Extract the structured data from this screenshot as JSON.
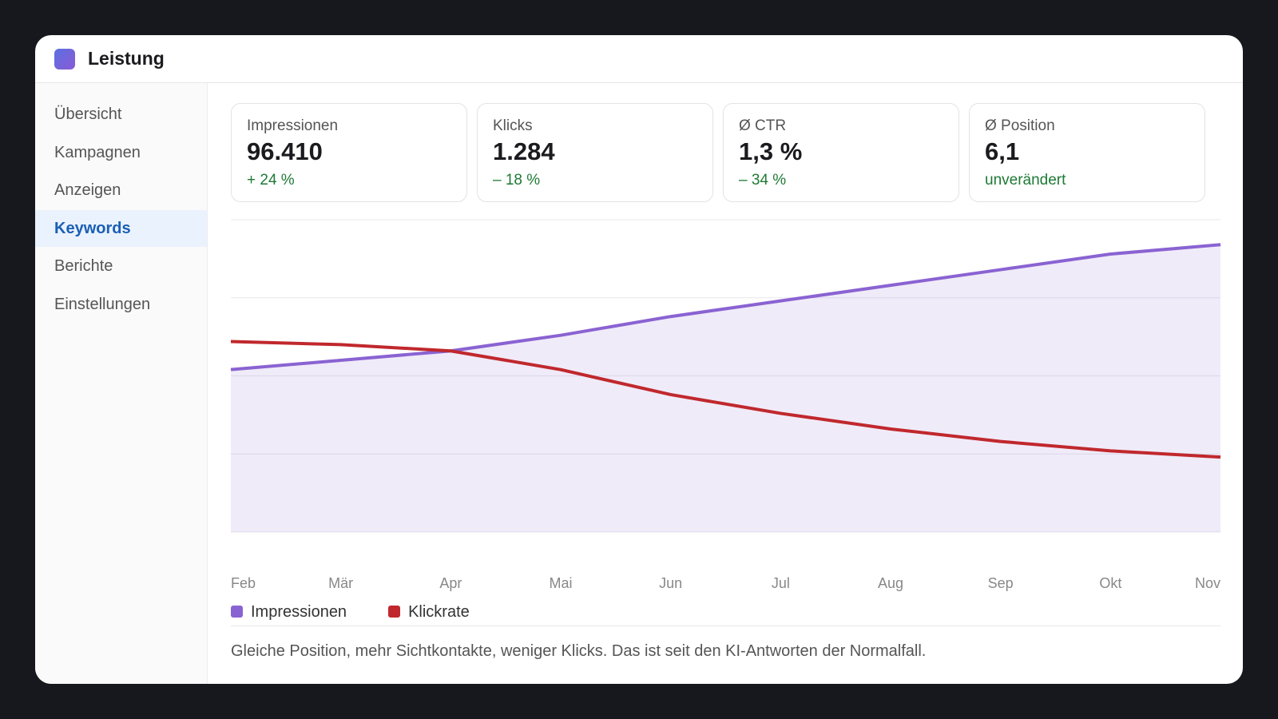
{
  "header": {
    "title": "Leistung"
  },
  "sidebar": {
    "items": [
      "Übersicht",
      "Kampagnen",
      "Anzeigen",
      "Keywords",
      "Berichte",
      "Einstellungen"
    ],
    "active": 3
  },
  "kpis": [
    {
      "label": "Impressionen",
      "value": "96.410",
      "delta": "+ 24 %"
    },
    {
      "label": "Klicks",
      "value": "1.284",
      "delta": "– 18 %"
    },
    {
      "label": "Ø CTR",
      "value": "1,3 %",
      "delta": "– 34 %"
    },
    {
      "label": "Ø Position",
      "value": "6,1",
      "delta": "unverändert"
    }
  ],
  "chart_data": {
    "type": "line",
    "categories": [
      "Feb",
      "Mär",
      "Apr",
      "Mai",
      "Jun",
      "Jul",
      "Aug",
      "Sep",
      "Okt",
      "Nov"
    ],
    "series": [
      {
        "name": "Impressionen",
        "color": "#8a63d2",
        "area": true,
        "values": [
          52,
          55,
          58,
          63,
          69,
          74,
          79,
          84,
          89,
          92
        ]
      },
      {
        "name": "Klickrate",
        "color": "#c0282d",
        "values": [
          61,
          60,
          58,
          52,
          44,
          38,
          33,
          29,
          26,
          24
        ]
      }
    ],
    "ylim": [
      0,
      100
    ],
    "yticks": [
      0,
      25,
      50,
      75,
      100
    ],
    "grid": true
  },
  "caption": "Gleiche Position, mehr Sichtkontakte, weniger Klicks. Das ist seit den KI-Antworten der Normalfall."
}
